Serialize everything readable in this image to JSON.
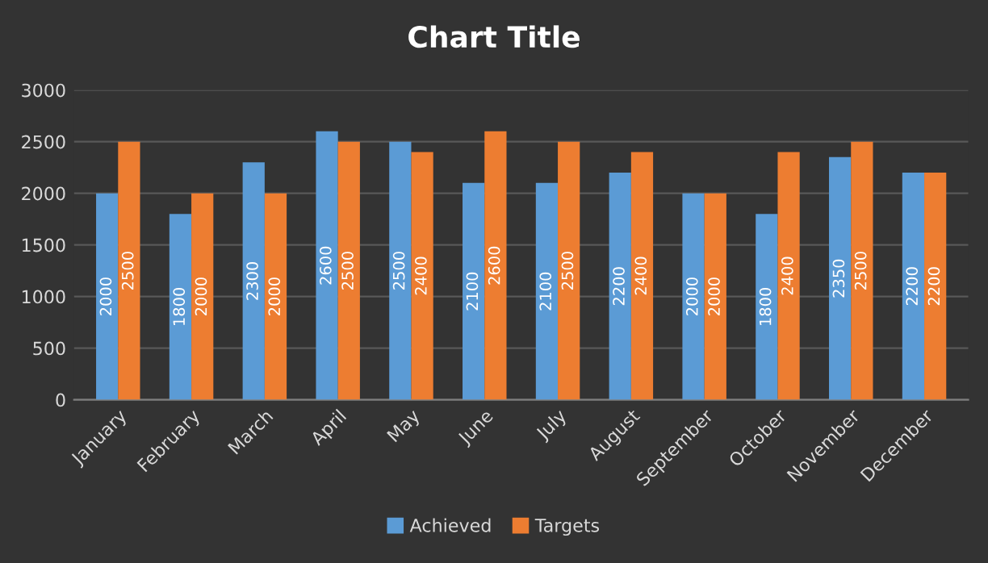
{
  "chart_data": {
    "type": "bar",
    "title": "Chart Title",
    "categories": [
      "January",
      "February",
      "March",
      "April",
      "May",
      "June",
      "July",
      "August",
      "September",
      "October",
      "November",
      "December"
    ],
    "series": [
      {
        "name": "Achieved",
        "color": "#5b9bd5",
        "values": [
          2000,
          1800,
          2300,
          2600,
          2500,
          2100,
          2100,
          2200,
          2000,
          1800,
          2350,
          2200
        ]
      },
      {
        "name": "Targets",
        "color": "#ed7d31",
        "values": [
          2500,
          2000,
          2000,
          2500,
          2400,
          2600,
          2500,
          2400,
          2000,
          2400,
          2500,
          2200
        ]
      }
    ],
    "ylim": [
      0,
      3000
    ],
    "yticks": [
      0,
      500,
      1000,
      1500,
      2000,
      2500,
      3000
    ],
    "grid": "y",
    "legend": "bottom",
    "data_labels": true
  }
}
